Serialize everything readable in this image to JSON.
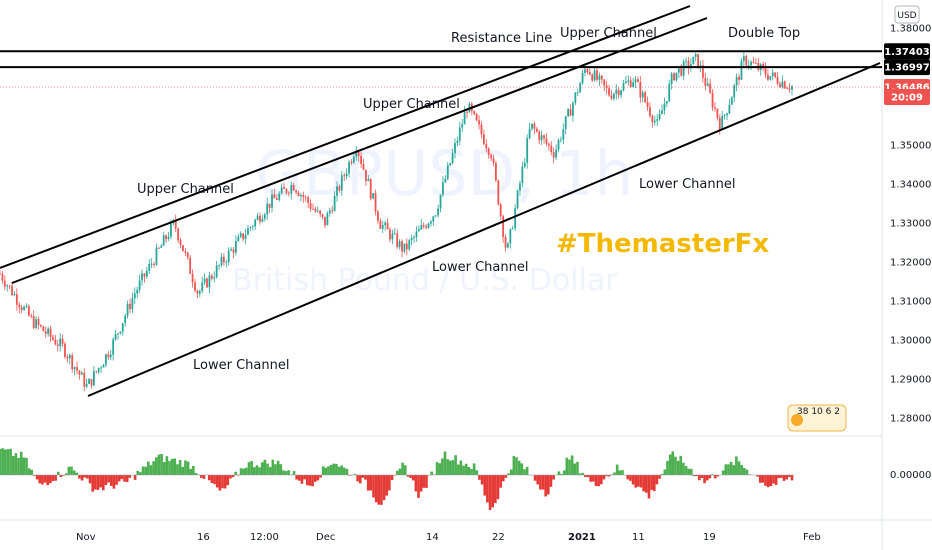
{
  "chart_data": {
    "type": "candlestick",
    "symbol_watermark": "GBPUSD, 1h",
    "name_watermark": "British Pound / U.S. Dollar",
    "currency": "USD",
    "tag": "#ThemasterFx",
    "y_ticks": [
      "1.38000",
      "1.35000",
      "1.34000",
      "1.33000",
      "1.32000",
      "1.31000",
      "1.30000",
      "1.29000",
      "1.28000"
    ],
    "y_tick_values": [
      1.38,
      1.35,
      1.34,
      1.33,
      1.32,
      1.31,
      1.3,
      1.29,
      1.28
    ],
    "ylim": [
      1.275,
      1.383
    ],
    "x_labels": [
      "Nov",
      "16",
      "12:00",
      "Dec",
      "14",
      "22",
      "2021",
      "11",
      "19",
      "Feb"
    ],
    "price_labels": [
      {
        "text": "1.37403",
        "value": 1.37403,
        "style": "level"
      },
      {
        "text": "1.36997",
        "value": 1.36997,
        "style": "level"
      },
      {
        "text": "1.36486",
        "value": 1.36486,
        "style": "current"
      },
      {
        "text": "20:09",
        "value": 1.36232,
        "style": "countdown"
      }
    ],
    "horizontal_levels": [
      1.37403,
      1.36997
    ],
    "current_price": 1.36486,
    "series_anchors": [
      {
        "t": 0,
        "v": 1.317
      },
      {
        "t": 0.04,
        "v": 1.305
      },
      {
        "t": 0.08,
        "v": 1.298
      },
      {
        "t": 0.11,
        "v": 1.288
      },
      {
        "t": 0.14,
        "v": 1.298
      },
      {
        "t": 0.17,
        "v": 1.312
      },
      {
        "t": 0.22,
        "v": 1.33
      },
      {
        "t": 0.25,
        "v": 1.312
      },
      {
        "t": 0.3,
        "v": 1.325
      },
      {
        "t": 0.34,
        "v": 1.335
      },
      {
        "t": 0.37,
        "v": 1.34
      },
      {
        "t": 0.41,
        "v": 1.33
      },
      {
        "t": 0.45,
        "v": 1.35
      },
      {
        "t": 0.48,
        "v": 1.33
      },
      {
        "t": 0.51,
        "v": 1.323
      },
      {
        "t": 0.55,
        "v": 1.333
      },
      {
        "t": 0.59,
        "v": 1.36
      },
      {
        "t": 0.62,
        "v": 1.348
      },
      {
        "t": 0.64,
        "v": 1.322
      },
      {
        "t": 0.67,
        "v": 1.355
      },
      {
        "t": 0.7,
        "v": 1.348
      },
      {
        "t": 0.74,
        "v": 1.37
      },
      {
        "t": 0.77,
        "v": 1.363
      },
      {
        "t": 0.8,
        "v": 1.367
      },
      {
        "t": 0.83,
        "v": 1.355
      },
      {
        "t": 0.85,
        "v": 1.368
      },
      {
        "t": 0.88,
        "v": 1.372
      },
      {
        "t": 0.91,
        "v": 1.355
      },
      {
        "t": 0.94,
        "v": 1.372
      },
      {
        "t": 0.97,
        "v": 1.368
      },
      {
        "t": 1.0,
        "v": 1.365
      }
    ],
    "oscillator": {
      "zero_label": "0.00000",
      "anchors": [
        {
          "t": 0,
          "v": 0.7
        },
        {
          "t": 0.03,
          "v": 0.5
        },
        {
          "t": 0.05,
          "v": -0.3
        },
        {
          "t": 0.09,
          "v": 0.2
        },
        {
          "t": 0.12,
          "v": -0.4
        },
        {
          "t": 0.16,
          "v": -0.2
        },
        {
          "t": 0.2,
          "v": 0.5
        },
        {
          "t": 0.24,
          "v": 0.3
        },
        {
          "t": 0.28,
          "v": -0.5
        },
        {
          "t": 0.31,
          "v": 0.3
        },
        {
          "t": 0.35,
          "v": 0.35
        },
        {
          "t": 0.39,
          "v": -0.3
        },
        {
          "t": 0.42,
          "v": 0.4
        },
        {
          "t": 0.46,
          "v": -0.2
        },
        {
          "t": 0.48,
          "v": -0.8
        },
        {
          "t": 0.51,
          "v": 0.3
        },
        {
          "t": 0.53,
          "v": -0.6
        },
        {
          "t": 0.56,
          "v": 0.6
        },
        {
          "t": 0.6,
          "v": 0.2
        },
        {
          "t": 0.62,
          "v": -1.0
        },
        {
          "t": 0.65,
          "v": 0.5
        },
        {
          "t": 0.69,
          "v": -0.5
        },
        {
          "t": 0.72,
          "v": 0.5
        },
        {
          "t": 0.75,
          "v": -0.3
        },
        {
          "t": 0.78,
          "v": 0.2
        },
        {
          "t": 0.82,
          "v": -0.6
        },
        {
          "t": 0.85,
          "v": 0.6
        },
        {
          "t": 0.89,
          "v": -0.2
        },
        {
          "t": 0.93,
          "v": 0.4
        },
        {
          "t": 0.97,
          "v": -0.3
        },
        {
          "t": 1.0,
          "v": -0.1
        }
      ]
    },
    "annotations": [
      {
        "text": "Resistance Line"
      },
      {
        "text": "Upper Channel"
      },
      {
        "text": "Upper Channel"
      },
      {
        "text": "Upper Channel"
      },
      {
        "text": "Double Top"
      },
      {
        "text": "Lower Channel"
      },
      {
        "text": "Lower Channel"
      },
      {
        "text": "Lower Channel"
      }
    ],
    "indicator_badge": [
      "38",
      "10",
      "6",
      "2"
    ],
    "colors": {
      "up": "#26a69a",
      "down": "#ef5350",
      "osc_up": "#4caf50",
      "osc_down": "#e53935",
      "tag": "#f5b800",
      "current": "#ef5350",
      "level": "#000000"
    }
  }
}
